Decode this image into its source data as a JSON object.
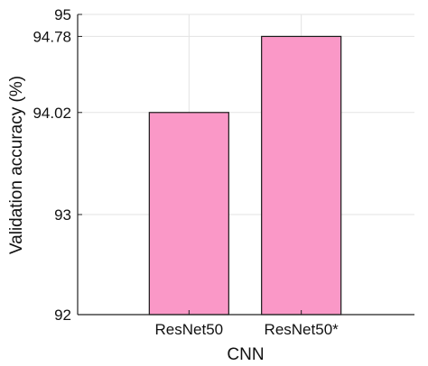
{
  "chart_data": {
    "type": "bar",
    "title": "",
    "xlabel": "CNN",
    "ylabel": "Validation accuracy (%)",
    "categories": [
      "ResNet50",
      "ResNet50*"
    ],
    "values": [
      94.02,
      94.78
    ],
    "ylim": [
      92,
      95
    ],
    "yticks": [
      92,
      93,
      94.02,
      94.78,
      95
    ],
    "ytick_labels": [
      "92",
      "93",
      "94.02",
      "94.78",
      "95"
    ],
    "grid": true,
    "bar_color": "#fa98c7",
    "bar_edge_color": "#1a1a1a",
    "grid_color": "#e3e3e3",
    "axis_color": "#222222"
  }
}
